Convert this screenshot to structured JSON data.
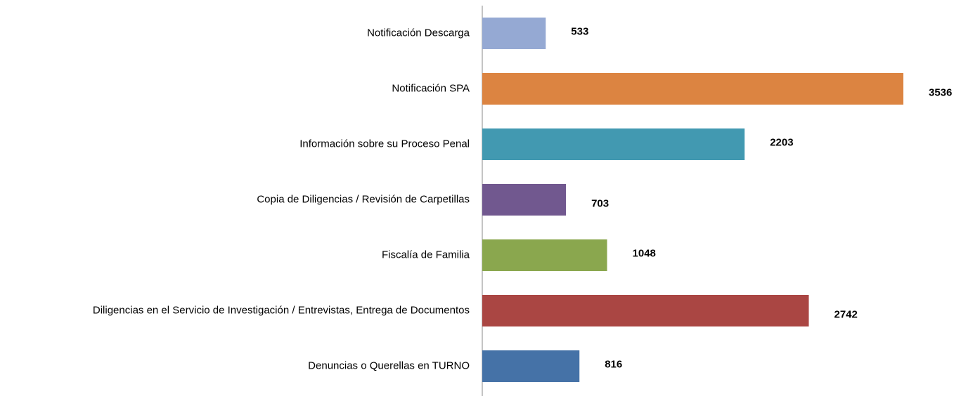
{
  "chart_data": {
    "type": "hbar",
    "categories": [
      "Notificación Descarga",
      "Notificación SPA",
      "Información sobre su Proceso Penal",
      "Copia de Diligencias / Revisión de Carpetillas",
      "Fiscalía de Familia",
      "Diligencias en el Servicio de Investigación / Entrevistas, Entrega de Documentos",
      "Denuncias o Querellas en TURNO"
    ],
    "values": [
      533,
      3536,
      2203,
      703,
      1048,
      2742,
      816
    ],
    "colors": [
      "#95a9d3",
      "#dc8441",
      "#4299b1",
      "#71588f",
      "#8aa74e",
      "#aa4643",
      "#4572a7"
    ]
  }
}
